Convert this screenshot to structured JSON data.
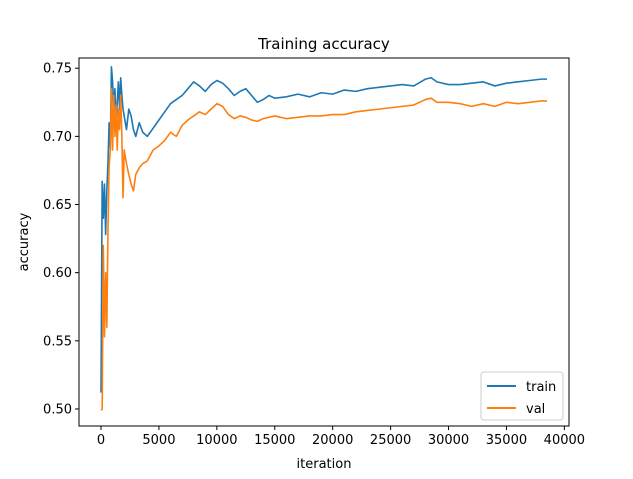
{
  "chart_data": {
    "type": "line",
    "title": "Training accuracy",
    "xlabel": "iteration",
    "ylabel": "accuracy",
    "xlim": [
      -1900,
      40400
    ],
    "ylim": [
      0.4875,
      0.7575
    ],
    "xticks": [
      0,
      5000,
      10000,
      15000,
      20000,
      25000,
      30000,
      35000,
      40000
    ],
    "xtick_labels": [
      "0",
      "5000",
      "10000",
      "15000",
      "20000",
      "25000",
      "30000",
      "35000",
      "40000"
    ],
    "yticks": [
      0.5,
      0.55,
      0.6,
      0.65,
      0.7,
      0.75
    ],
    "ytick_labels": [
      "0.50",
      "0.55",
      "0.60",
      "0.65",
      "0.70",
      "0.75"
    ],
    "grid": false,
    "legend_position": "lower-right",
    "series": [
      {
        "name": "train",
        "color": "#1f77b4",
        "x": [
          0,
          100,
          200,
          300,
          400,
          500,
          600,
          700,
          800,
          900,
          1000,
          1100,
          1200,
          1300,
          1400,
          1500,
          1600,
          1700,
          1800,
          1900,
          2000,
          2200,
          2400,
          2600,
          2800,
          3000,
          3300,
          3600,
          4000,
          4500,
          5000,
          5500,
          6000,
          6500,
          7000,
          7500,
          8000,
          8500,
          9000,
          9500,
          10000,
          10500,
          11000,
          11500,
          12000,
          12500,
          13000,
          13500,
          14000,
          14500,
          15000,
          16000,
          17000,
          18000,
          19000,
          20000,
          21000,
          22000,
          23000,
          24000,
          25000,
          26000,
          27000,
          28000,
          28500,
          29000,
          30000,
          31000,
          32000,
          33000,
          34000,
          35000,
          36000,
          37000,
          38000,
          38500
        ],
        "y": [
          0.512,
          0.667,
          0.64,
          0.665,
          0.628,
          0.66,
          0.68,
          0.71,
          0.69,
          0.751,
          0.74,
          0.72,
          0.735,
          0.71,
          0.725,
          0.74,
          0.72,
          0.743,
          0.73,
          0.72,
          0.715,
          0.705,
          0.72,
          0.715,
          0.705,
          0.7,
          0.71,
          0.703,
          0.7,
          0.706,
          0.712,
          0.718,
          0.724,
          0.727,
          0.73,
          0.735,
          0.74,
          0.737,
          0.733,
          0.738,
          0.741,
          0.739,
          0.735,
          0.73,
          0.733,
          0.735,
          0.73,
          0.725,
          0.727,
          0.73,
          0.728,
          0.729,
          0.731,
          0.729,
          0.732,
          0.731,
          0.734,
          0.733,
          0.735,
          0.736,
          0.737,
          0.738,
          0.737,
          0.742,
          0.743,
          0.74,
          0.738,
          0.738,
          0.739,
          0.74,
          0.737,
          0.739,
          0.74,
          0.741,
          0.742,
          0.742
        ]
      },
      {
        "name": "val",
        "color": "#ff7f0e",
        "x": [
          0,
          100,
          200,
          300,
          400,
          500,
          600,
          700,
          800,
          900,
          1000,
          1100,
          1200,
          1300,
          1400,
          1500,
          1600,
          1700,
          1800,
          1900,
          2000,
          2200,
          2400,
          2600,
          2800,
          3000,
          3300,
          3600,
          4000,
          4500,
          5000,
          5500,
          6000,
          6500,
          7000,
          7500,
          8000,
          8500,
          9000,
          9500,
          10000,
          10500,
          11000,
          11500,
          12000,
          12500,
          13000,
          13500,
          14000,
          14500,
          15000,
          16000,
          17000,
          18000,
          19000,
          20000,
          21000,
          22000,
          23000,
          24000,
          25000,
          26000,
          27000,
          28000,
          28500,
          29000,
          30000,
          31000,
          32000,
          33000,
          34000,
          35000,
          36000,
          37000,
          38000,
          38500
        ],
        "y": [
          0.499,
          0.5,
          0.62,
          0.553,
          0.6,
          0.56,
          0.63,
          0.678,
          0.69,
          0.735,
          0.69,
          0.73,
          0.7,
          0.723,
          0.69,
          0.72,
          0.705,
          0.73,
          0.7,
          0.655,
          0.69,
          0.68,
          0.672,
          0.665,
          0.66,
          0.672,
          0.677,
          0.68,
          0.682,
          0.69,
          0.693,
          0.697,
          0.703,
          0.7,
          0.708,
          0.712,
          0.715,
          0.718,
          0.716,
          0.72,
          0.724,
          0.722,
          0.716,
          0.713,
          0.715,
          0.714,
          0.712,
          0.711,
          0.713,
          0.714,
          0.715,
          0.713,
          0.714,
          0.715,
          0.715,
          0.716,
          0.716,
          0.718,
          0.719,
          0.72,
          0.721,
          0.722,
          0.723,
          0.727,
          0.728,
          0.725,
          0.725,
          0.724,
          0.722,
          0.724,
          0.722,
          0.725,
          0.724,
          0.725,
          0.726,
          0.726
        ]
      }
    ]
  }
}
